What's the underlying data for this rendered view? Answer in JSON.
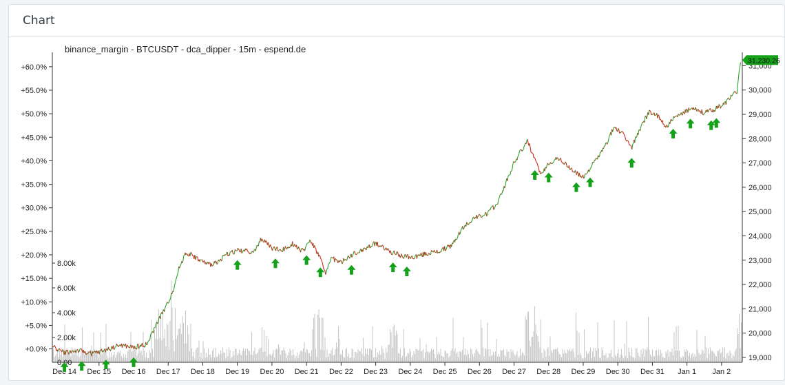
{
  "card": {
    "title": "Chart"
  },
  "chart_data": {
    "type": "line",
    "title": "binance_margin - BTCUSDT - dca_dipper - 15m - espend.de",
    "xlabel": "",
    "ylabel": "",
    "x_tick_labels": [
      "Dec 14",
      "Dec 15",
      "Dec 16",
      "Dec 17",
      "Dec 18",
      "Dec 19",
      "Dec 20",
      "Dec 21",
      "Dec 22",
      "Dec 23",
      "Dec 24",
      "Dec 25",
      "Dec 26",
      "Dec 27",
      "Dec 28",
      "Dec 29",
      "Dec 30",
      "Dec 31",
      "Jan 1",
      "Jan 2"
    ],
    "x_tick_days": [
      0,
      1,
      2,
      3,
      4,
      5,
      6,
      7,
      8,
      9,
      10,
      11,
      12,
      13,
      14,
      15,
      16,
      17,
      18,
      19
    ],
    "x_range_days": [
      -0.35,
      19.6
    ],
    "price_axis": {
      "ticks": [
        19000,
        20000,
        21000,
        22000,
        23000,
        24000,
        25000,
        26000,
        27000,
        28000,
        29000,
        30000,
        31000
      ],
      "tick_labels": [
        "19,000",
        "20,000",
        "21,000",
        "22,000",
        "23,000",
        "24,000",
        "25,000",
        "26,000",
        "27,000",
        "28,000",
        "29,000",
        "30,000",
        "31,000"
      ],
      "range": [
        18800,
        31550
      ],
      "last_price_label": "31,230.26",
      "last_price": 31230.26
    },
    "percent_axis": {
      "ticks": [
        0,
        5,
        10,
        15,
        20,
        25,
        30,
        35,
        40,
        45,
        50,
        55,
        60
      ],
      "tick_labels": [
        "+0.0%",
        "+5.0%",
        "+10.0%",
        "+15.0%",
        "+20.0%",
        "+25.0%",
        "+30.0%",
        "+35.0%",
        "+40.0%",
        "+45.0%",
        "+50.0%",
        "+55.0%",
        "+60.0%"
      ],
      "base_price": 19350
    },
    "volume_axis": {
      "ticks": [
        0,
        2000,
        4000,
        6000,
        8000
      ],
      "tick_labels": [
        "0.00",
        "2.00k",
        "4.00k",
        "6.00k",
        "8.00k"
      ],
      "max": 10000
    },
    "price_series": {
      "day": [
        -0.35,
        0.0,
        0.4,
        0.8,
        1.0,
        1.3,
        1.6,
        2.0,
        2.4,
        2.7,
        2.95,
        3.15,
        3.3,
        3.5,
        3.7,
        3.9,
        4.2,
        4.5,
        4.7,
        5.0,
        5.5,
        5.7,
        6.0,
        6.3,
        6.6,
        6.9,
        7.1,
        7.4,
        7.55,
        7.7,
        8.0,
        8.3,
        8.6,
        9.0,
        9.3,
        9.5,
        9.7,
        10.0,
        10.4,
        10.8,
        11.2,
        11.5,
        11.8,
        12.2,
        12.5,
        12.8,
        13.0,
        13.2,
        13.4,
        13.6,
        13.8,
        14.0,
        14.3,
        14.6,
        15.0,
        15.3,
        15.6,
        15.9,
        16.2,
        16.4,
        16.6,
        16.9,
        17.1,
        17.4,
        17.6,
        17.9,
        18.2,
        18.5,
        18.8,
        19.1,
        19.3,
        19.45,
        19.55
      ],
      "price": [
        19450,
        19200,
        19280,
        19150,
        19220,
        19350,
        19500,
        19400,
        19550,
        20500,
        21100,
        21800,
        22600,
        23300,
        23200,
        23000,
        22800,
        23000,
        23250,
        23400,
        23350,
        23900,
        23500,
        23400,
        23700,
        23350,
        23850,
        23100,
        22400,
        23100,
        22900,
        23200,
        23400,
        23700,
        23450,
        23300,
        23200,
        23100,
        23250,
        23350,
        23600,
        24300,
        24700,
        24900,
        25300,
        26300,
        27000,
        27500,
        27900,
        27100,
        26500,
        27000,
        27200,
        26800,
        26400,
        27000,
        27600,
        28500,
        28100,
        27600,
        28300,
        29100,
        29000,
        28500,
        28800,
        29050,
        29300,
        29050,
        29200,
        29450,
        29800,
        29900,
        31230
      ]
    },
    "entry_markers_day": [
      0.0,
      0.5,
      1.2,
      2.0,
      5.0,
      6.1,
      7.0,
      7.4,
      8.3,
      9.5,
      9.9,
      13.6,
      14.0,
      14.8,
      15.2,
      16.4,
      17.6,
      18.1,
      18.7,
      18.85
    ]
  }
}
